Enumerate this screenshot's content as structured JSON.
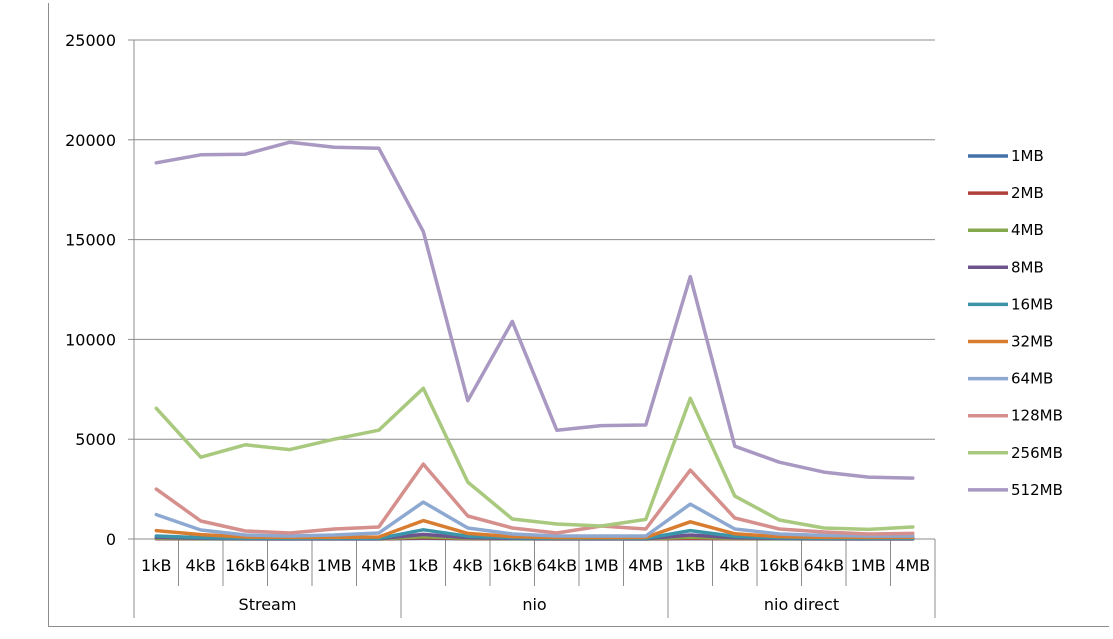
{
  "chart_data": {
    "type": "line",
    "title": "",
    "xlabel": "",
    "ylabel": "",
    "ylim": [
      0,
      25000
    ],
    "yticks": [
      0,
      5000,
      10000,
      15000,
      20000,
      25000
    ],
    "grid": true,
    "legend_position": "right",
    "groups": [
      {
        "label": "Stream",
        "categories": [
          "1kB",
          "4kB",
          "16kB",
          "64kB",
          "1MB",
          "4MB"
        ]
      },
      {
        "label": "nio",
        "categories": [
          "1kB",
          "4kB",
          "16kB",
          "64kB",
          "1MB",
          "4MB"
        ]
      },
      {
        "label": "nio direct",
        "categories": [
          "1kB",
          "4kB",
          "16kB",
          "64kB",
          "1MB",
          "4MB"
        ]
      }
    ],
    "series": [
      {
        "name": "1MB",
        "color": "#4472a8",
        "values": [
          10,
          5,
          5,
          5,
          5,
          5,
          30,
          10,
          5,
          5,
          5,
          5,
          20,
          10,
          5,
          5,
          5,
          5
        ]
      },
      {
        "name": "2MB",
        "color": "#b0403c",
        "values": [
          20,
          10,
          5,
          5,
          5,
          5,
          60,
          20,
          10,
          5,
          5,
          5,
          40,
          15,
          10,
          5,
          5,
          5
        ]
      },
      {
        "name": "4MB",
        "color": "#84a84c",
        "values": [
          40,
          20,
          10,
          10,
          10,
          10,
          110,
          40,
          15,
          10,
          10,
          10,
          90,
          30,
          15,
          10,
          10,
          10
        ]
      },
      {
        "name": "8MB",
        "color": "#6d548e",
        "values": [
          80,
          40,
          20,
          15,
          15,
          15,
          230,
          70,
          30,
          20,
          15,
          15,
          200,
          60,
          30,
          20,
          15,
          15
        ]
      },
      {
        "name": "16MB",
        "color": "#3c94a8",
        "values": [
          150,
          70,
          40,
          30,
          30,
          30,
          460,
          140,
          60,
          35,
          30,
          30,
          420,
          130,
          60,
          40,
          30,
          30
        ]
      },
      {
        "name": "32MB",
        "color": "#d87d30",
        "values": [
          420,
          220,
          100,
          80,
          80,
          100,
          920,
          280,
          120,
          70,
          70,
          80,
          860,
          260,
          120,
          80,
          80,
          80
        ]
      },
      {
        "name": "64MB",
        "color": "#8ea9d1",
        "values": [
          1220,
          450,
          200,
          150,
          200,
          300,
          1850,
          550,
          250,
          150,
          150,
          150,
          1750,
          500,
          250,
          180,
          150,
          150
        ]
      },
      {
        "name": "128MB",
        "color": "#d58f8c",
        "values": [
          2500,
          900,
          400,
          300,
          500,
          600,
          3750,
          1150,
          550,
          300,
          650,
          500,
          3450,
          1050,
          500,
          350,
          250,
          280
        ]
      },
      {
        "name": "256MB",
        "color": "#a8c97e",
        "values": [
          6550,
          4100,
          4720,
          4480,
          5000,
          5450,
          7550,
          2850,
          1000,
          750,
          650,
          980,
          7050,
          2150,
          950,
          550,
          480,
          600
        ]
      },
      {
        "name": "512MB",
        "color": "#a898c2",
        "values": [
          18850,
          19250,
          19280,
          19880,
          19630,
          19580,
          15400,
          6930,
          10900,
          5450,
          5680,
          5710,
          13150,
          4650,
          3850,
          3350,
          3100,
          3050
        ]
      }
    ]
  }
}
